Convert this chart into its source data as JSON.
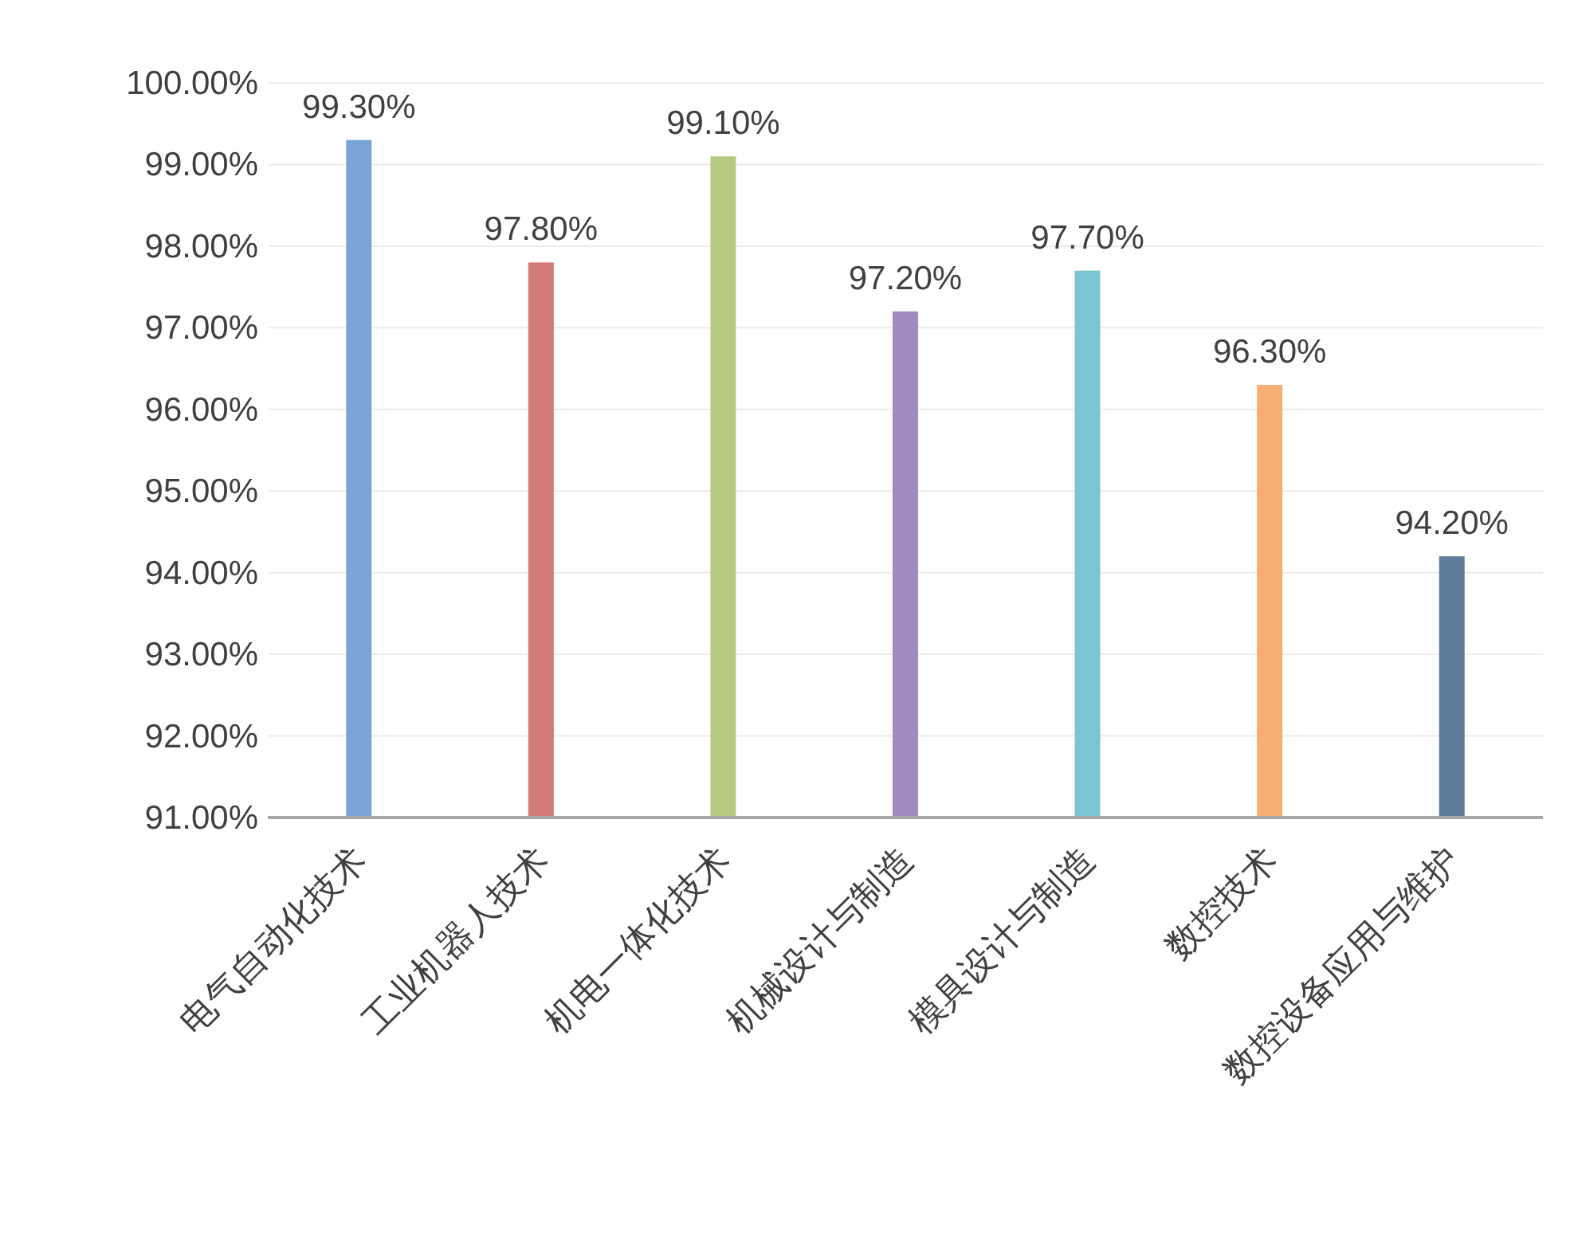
{
  "chart_data": {
    "type": "bar",
    "categories": [
      "电气自动化技术",
      "工业机器人技术",
      "机电一体化技术",
      "机械设计与制造",
      "模具设计与制造",
      "数控技术",
      "数控设备应用与维护"
    ],
    "values": [
      99.3,
      97.8,
      99.1,
      97.2,
      97.7,
      96.3,
      94.2
    ],
    "colors": [
      "#7aa3d6",
      "#d27b78",
      "#b5cb7e",
      "#a08cc0",
      "#7bc4d4",
      "#f7ae73",
      "#5f7b9c"
    ],
    "value_labels": [
      "99.30%",
      "97.80%",
      "99.10%",
      "97.20%",
      "97.70%",
      "96.30%",
      "94.20%"
    ],
    "ylim": [
      91,
      100
    ],
    "yticks": [
      {
        "value": 91,
        "label": "91.00%"
      },
      {
        "value": 92,
        "label": "92.00%"
      },
      {
        "value": 93,
        "label": "93.00%"
      },
      {
        "value": 94,
        "label": "94.00%"
      },
      {
        "value": 95,
        "label": "95.00%"
      },
      {
        "value": 96,
        "label": "96.00%"
      },
      {
        "value": 97,
        "label": "97.00%"
      },
      {
        "value": 98,
        "label": "98.00%"
      },
      {
        "value": 99,
        "label": "99.00%"
      },
      {
        "value": 100,
        "label": "100.00%"
      }
    ],
    "grid": "y"
  }
}
